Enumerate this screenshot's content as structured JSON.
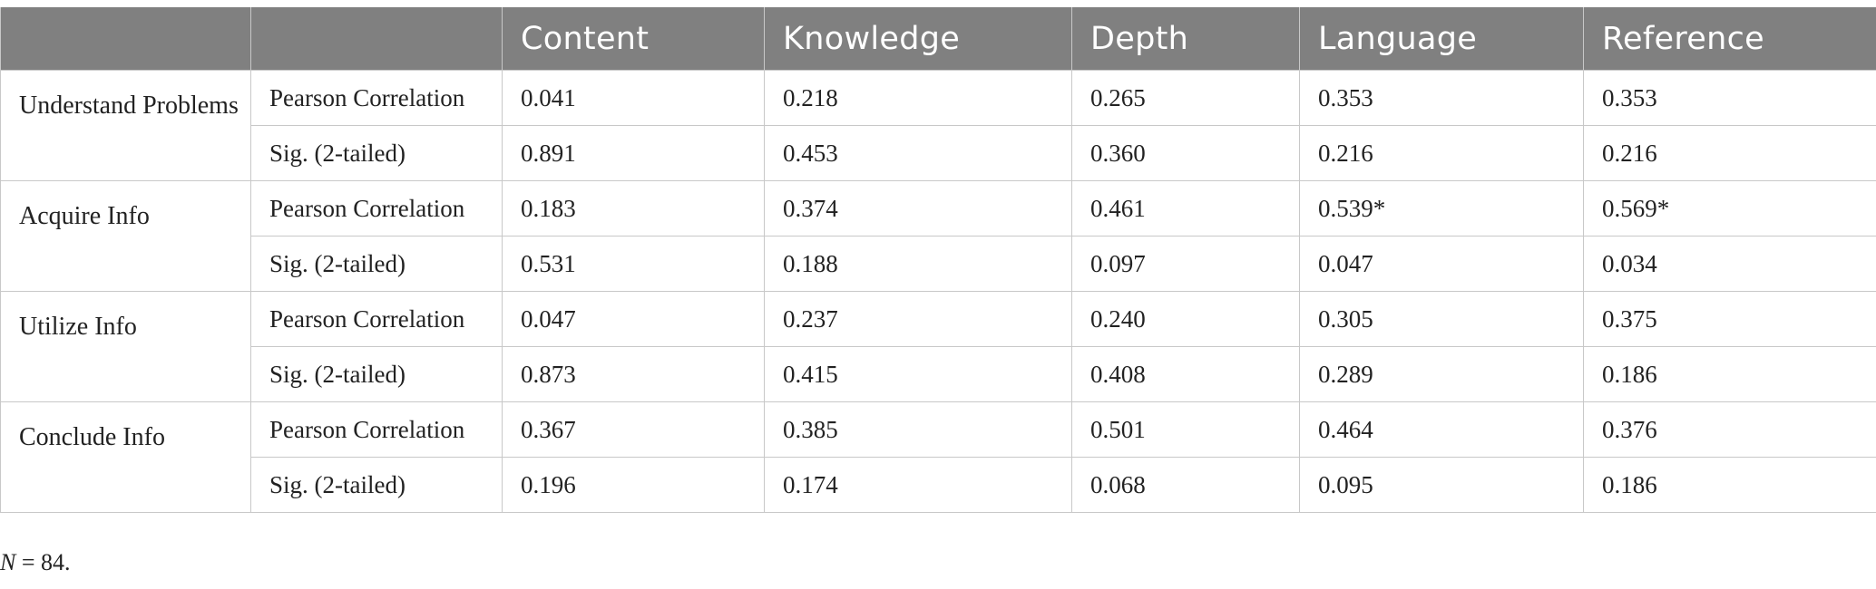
{
  "table": {
    "headers": [
      "",
      "",
      "Content",
      "Knowledge",
      "Depth",
      "Language",
      "Reference"
    ],
    "groups": [
      {
        "label": "Understand Problems",
        "rows": [
          {
            "stat": "Pearson Correlation",
            "values": [
              "0.041",
              "0.218",
              "0.265",
              "0.353",
              "0.353"
            ]
          },
          {
            "stat": "Sig. (2-tailed)",
            "values": [
              "0.891",
              "0.453",
              "0.360",
              "0.216",
              "0.216"
            ]
          }
        ]
      },
      {
        "label": "Acquire Info",
        "rows": [
          {
            "stat": "Pearson Correlation",
            "values": [
              "0.183",
              "0.374",
              "0.461",
              "0.539*",
              "0.569*"
            ]
          },
          {
            "stat": "Sig. (2-tailed)",
            "values": [
              "0.531",
              "0.188",
              "0.097",
              "0.047",
              "0.034"
            ]
          }
        ]
      },
      {
        "label": "Utilize Info",
        "rows": [
          {
            "stat": "Pearson Correlation",
            "values": [
              "0.047",
              "0.237",
              "0.240",
              "0.305",
              "0.375"
            ]
          },
          {
            "stat": "Sig. (2-tailed)",
            "values": [
              "0.873",
              "0.415",
              "0.408",
              "0.289",
              "0.186"
            ]
          }
        ]
      },
      {
        "label": "Conclude Info",
        "rows": [
          {
            "stat": "Pearson Correlation",
            "values": [
              "0.367",
              "0.385",
              "0.501",
              "0.464",
              "0.376"
            ]
          },
          {
            "stat": "Sig. (2-tailed)",
            "values": [
              "0.196",
              "0.174",
              "0.068",
              "0.095",
              "0.186"
            ]
          }
        ]
      }
    ]
  },
  "note": {
    "variable": "N",
    "text": " = 84."
  },
  "colors": {
    "header_bg": "#808080",
    "header_text": "#ffffff",
    "border": "#c8c8c8",
    "body_text": "#222222"
  }
}
